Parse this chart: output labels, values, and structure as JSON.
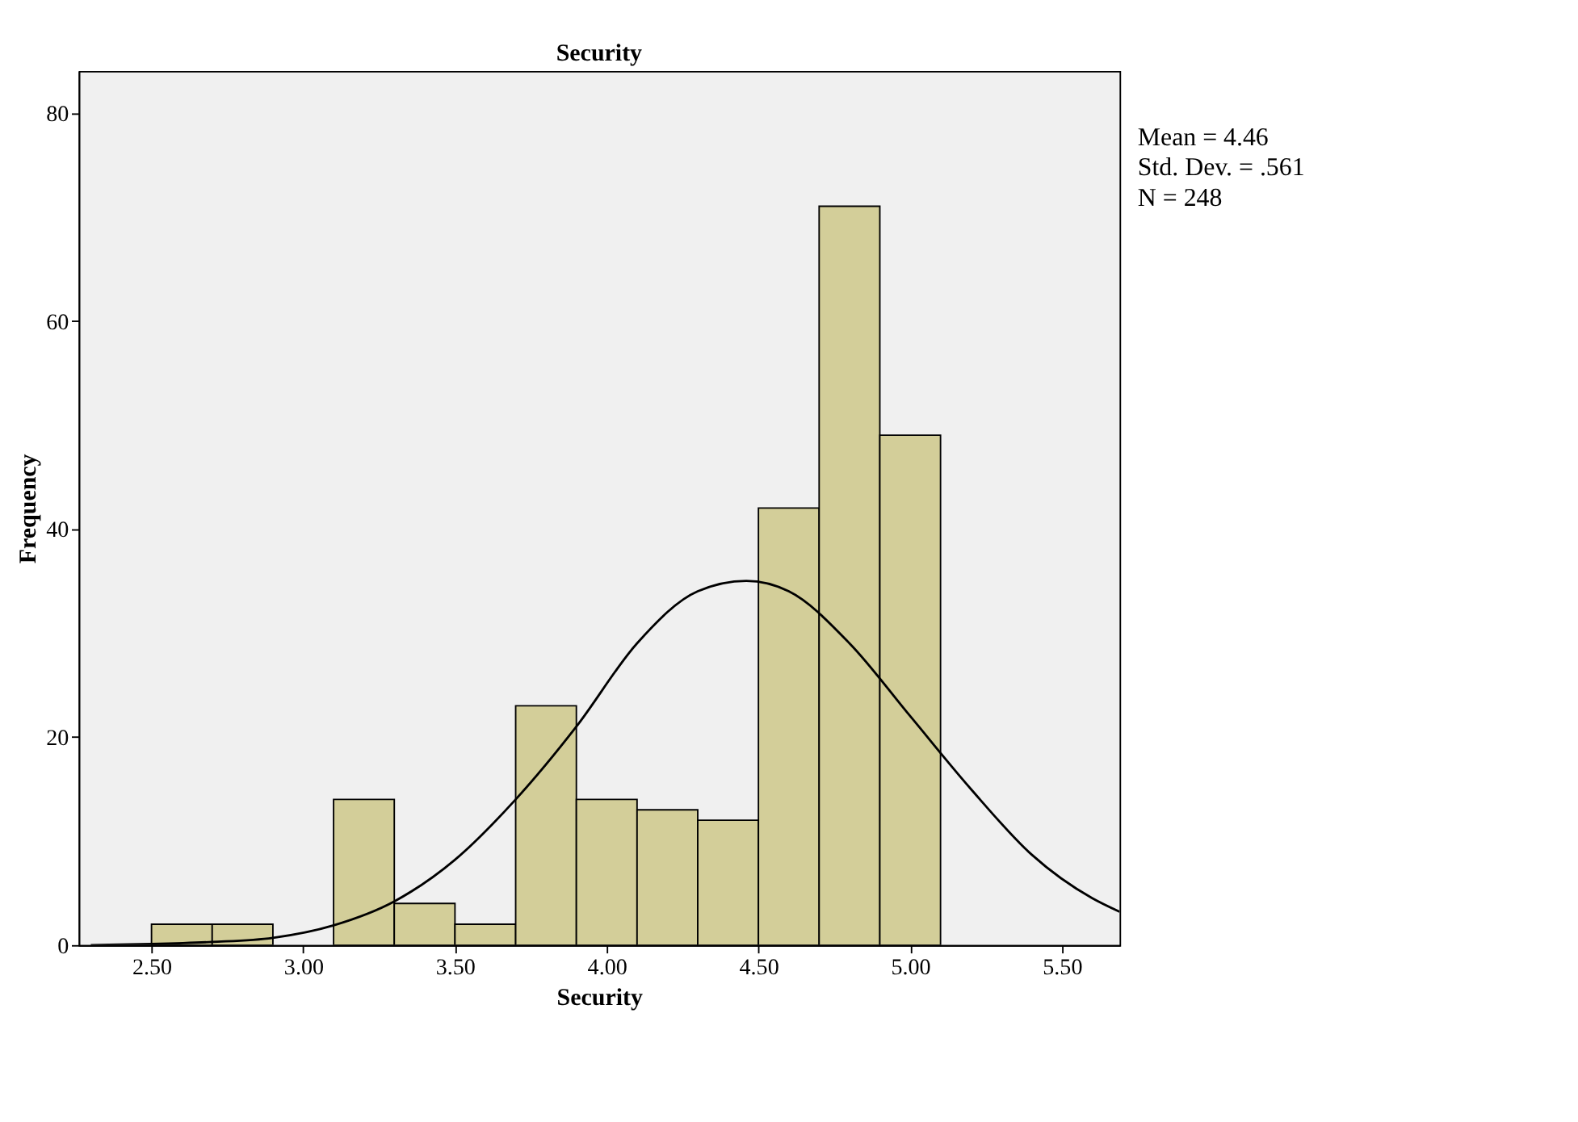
{
  "chart_data": {
    "type": "histogram",
    "title": "Security",
    "xlabel": "Security",
    "ylabel": "Frequency",
    "bins": [
      2.5,
      2.7,
      2.9,
      3.1,
      3.3,
      3.5,
      3.7,
      3.9,
      4.1,
      4.3,
      4.5,
      4.7,
      4.9,
      5.1
    ],
    "values": [
      2,
      2,
      0,
      14,
      4,
      2,
      23,
      14,
      13,
      12,
      42,
      71,
      49
    ],
    "color": "#d3ce99",
    "series": [
      {
        "type": "line",
        "color": "#000000",
        "x": [
          2.3,
          2.5,
          2.7,
          2.9,
          3.1,
          3.3,
          3.5,
          3.7,
          3.9,
          4.1,
          4.3,
          4.46,
          4.6,
          4.8,
          5.0,
          5.2,
          5.4,
          5.6,
          5.69
        ],
        "values": [
          0,
          0.1,
          0.3,
          0.7,
          1.9,
          4.2,
          8.2,
          14,
          21,
          29,
          34,
          35,
          34,
          29,
          22,
          15,
          8.7,
          4.5,
          3.2
        ]
      }
    ],
    "xlim": [
      2.26,
      5.69
    ],
    "ylim": [
      0,
      84
    ],
    "xticks": [
      {
        "value": 2.5,
        "label": "2.50"
      },
      {
        "value": 3.0,
        "label": "3.00"
      },
      {
        "value": 3.5,
        "label": "3.50"
      },
      {
        "value": 4.0,
        "label": "4.00"
      },
      {
        "value": 4.5,
        "label": "4.50"
      },
      {
        "value": 5.0,
        "label": "5.00"
      },
      {
        "value": 5.5,
        "label": "5.50"
      }
    ],
    "yticks": [
      0,
      20,
      40,
      60,
      80
    ],
    "grid": false,
    "annotations": [
      "Mean = 4.46",
      "Std. Dev. = .561",
      "N = 248"
    ]
  }
}
